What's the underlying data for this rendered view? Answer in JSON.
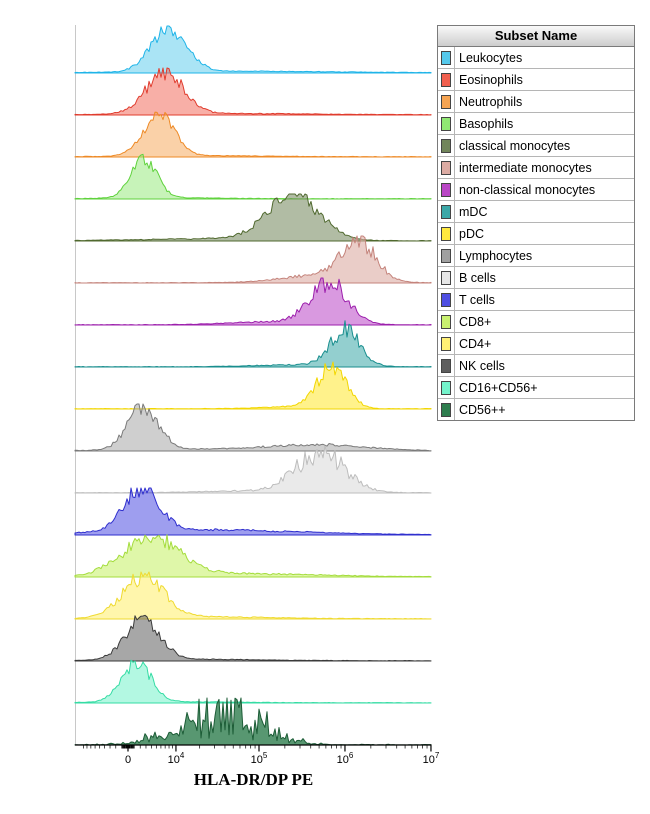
{
  "legend": {
    "title": "Subset Name"
  },
  "chart_data": {
    "type": "histogram",
    "variant": "stacked-ridgeline-overlay",
    "title": "",
    "xlabel": "HLA-DR/DP PE",
    "ylabel": "",
    "x_axis": {
      "scale": "biexponential",
      "range_max": 10000000,
      "ticks": [
        {
          "value": 0,
          "label": "0"
        },
        {
          "value": 10000,
          "base": "10",
          "exp": "4"
        },
        {
          "value": 100000,
          "base": "10",
          "exp": "5"
        },
        {
          "value": 1000000,
          "base": "10",
          "exp": "6"
        },
        {
          "value": 10000000,
          "base": "10",
          "exp": "7"
        }
      ]
    },
    "subsets": [
      {
        "name": "Leukocytes",
        "color": "#55C9EC",
        "stroke": "#1FB4E8",
        "fill_opacity": 0.5,
        "noise": 0.18,
        "spiky": false,
        "peaks": [
          {
            "value": 8000,
            "sigma_decades": 0.21,
            "rel_height": 42
          },
          {
            "value": 60000,
            "sigma_decades": 1.1,
            "rel_height": 1.5
          }
        ]
      },
      {
        "name": "Eosinophils",
        "color": "#F2604F",
        "stroke": "#E03C2E",
        "fill_opacity": 0.5,
        "noise": 0.2,
        "spiky": false,
        "peaks": [
          {
            "value": 7000,
            "sigma_decades": 0.22,
            "rel_height": 41
          },
          {
            "value": 40000,
            "sigma_decades": 1.0,
            "rel_height": 1.2
          }
        ]
      },
      {
        "name": "Neutrophils",
        "color": "#F6A452",
        "stroke": "#EE8A26",
        "fill_opacity": 0.5,
        "noise": 0.18,
        "spiky": false,
        "peaks": [
          {
            "value": 5500,
            "sigma_decades": 0.18,
            "rel_height": 41
          },
          {
            "value": 20000,
            "sigma_decades": 0.8,
            "rel_height": 1
          }
        ]
      },
      {
        "name": "Basophils",
        "color": "#90E873",
        "stroke": "#5FD23C",
        "fill_opacity": 0.5,
        "noise": 0.18,
        "spiky": false,
        "peaks": [
          {
            "value": 2600,
            "sigma_decades": 0.15,
            "rel_height": 39
          },
          {
            "value": 8000,
            "sigma_decades": 0.6,
            "rel_height": 1
          }
        ]
      },
      {
        "name": "classical monocytes",
        "color": "#71855A",
        "stroke": "#50692F",
        "fill_opacity": 0.55,
        "noise": 0.2,
        "spiky": false,
        "peaks": [
          {
            "value": 250000,
            "sigma_decades": 0.3,
            "rel_height": 45
          },
          {
            "value": 30000,
            "sigma_decades": 0.8,
            "rel_height": 2
          }
        ]
      },
      {
        "name": "intermediate monocytes",
        "color": "#DCABA3",
        "stroke": "#C4837B",
        "fill_opacity": 0.6,
        "noise": 0.25,
        "spiky": false,
        "peaks": [
          {
            "value": 1400000,
            "sigma_decades": 0.2,
            "rel_height": 41
          },
          {
            "value": 500000,
            "sigma_decades": 0.45,
            "rel_height": 7
          }
        ]
      },
      {
        "name": "non-classical monocytes",
        "color": "#BA46C6",
        "stroke": "#9C1FAC",
        "fill_opacity": 0.55,
        "noise": 0.25,
        "spiky": false,
        "peaks": [
          {
            "value": 650000,
            "sigma_decades": 0.22,
            "rel_height": 41
          },
          {
            "value": 150000,
            "sigma_decades": 0.5,
            "rel_height": 3
          }
        ]
      },
      {
        "name": "mDC",
        "color": "#3BA8A8",
        "stroke": "#188E8E",
        "fill_opacity": 0.55,
        "noise": 0.25,
        "spiky": false,
        "peaks": [
          {
            "value": 1000000,
            "sigma_decades": 0.17,
            "rel_height": 36
          },
          {
            "value": 300000,
            "sigma_decades": 0.5,
            "rel_height": 2
          }
        ]
      },
      {
        "name": "pDC",
        "color": "#FFE93E",
        "stroke": "#F2D600",
        "fill_opacity": 0.6,
        "noise": 0.22,
        "spiky": false,
        "peaks": [
          {
            "value": 700000,
            "sigma_decades": 0.17,
            "rel_height": 40
          },
          {
            "value": 250000,
            "sigma_decades": 0.4,
            "rel_height": 2
          }
        ]
      },
      {
        "name": "Lymphocytes",
        "color": "#A0A0A0",
        "stroke": "#7A7A7A",
        "fill_opacity": 0.5,
        "noise": 0.2,
        "spiky": false,
        "peaks": [
          {
            "value": 2500,
            "sigma_decades": 0.18,
            "rel_height": 43
          },
          {
            "value": 500000,
            "sigma_decades": 0.55,
            "rel_height": 5.5
          },
          {
            "value": 30000,
            "sigma_decades": 0.9,
            "rel_height": 1.5
          }
        ]
      },
      {
        "name": "B cells",
        "color": "#E6E6E6",
        "stroke": "#BDBDBD",
        "fill_opacity": 0.85,
        "noise": 0.3,
        "spiky": false,
        "peaks": [
          {
            "value": 520000,
            "sigma_decades": 0.28,
            "rel_height": 39
          },
          {
            "value": 100000,
            "sigma_decades": 0.6,
            "rel_height": 2
          }
        ]
      },
      {
        "name": "T cells",
        "color": "#4F4FE2",
        "stroke": "#2F2FCE",
        "fill_opacity": 0.55,
        "noise": 0.2,
        "spiky": false,
        "peaks": [
          {
            "value": 2300,
            "sigma_decades": 0.2,
            "rel_height": 43
          },
          {
            "value": 20000,
            "sigma_decades": 1.1,
            "rel_height": 5
          }
        ]
      },
      {
        "name": "CD8+",
        "color": "#C9F170",
        "stroke": "#A4DC3C",
        "fill_opacity": 0.6,
        "noise": 0.25,
        "spiky": false,
        "peaks": [
          {
            "value": 4000,
            "sigma_decades": 0.33,
            "rel_height": 39
          },
          {
            "value": 60000,
            "sigma_decades": 0.9,
            "rel_height": 3
          }
        ]
      },
      {
        "name": "CD4+",
        "color": "#FFF075",
        "stroke": "#EFDA30",
        "fill_opacity": 0.6,
        "noise": 0.22,
        "spiky": false,
        "peaks": [
          {
            "value": 2500,
            "sigma_decades": 0.24,
            "rel_height": 41
          },
          {
            "value": 20000,
            "sigma_decades": 0.8,
            "rel_height": 2
          }
        ]
      },
      {
        "name": "NK cells",
        "color": "#5E5E5E",
        "stroke": "#3A3A3A",
        "fill_opacity": 0.55,
        "noise": 0.2,
        "spiky": false,
        "peaks": [
          {
            "value": 2400,
            "sigma_decades": 0.2,
            "rel_height": 41
          },
          {
            "value": 15000,
            "sigma_decades": 0.8,
            "rel_height": 1.5
          }
        ]
      },
      {
        "name": "CD16+CD56+",
        "color": "#74F3CB",
        "stroke": "#35DCA4",
        "fill_opacity": 0.55,
        "noise": 0.2,
        "spiky": false,
        "peaks": [
          {
            "value": 1300,
            "sigma_decades": 0.17,
            "rel_height": 40
          },
          {
            "value": 8000,
            "sigma_decades": 0.7,
            "rel_height": 1
          }
        ]
      },
      {
        "name": "CD56++",
        "color": "#2E7D4E",
        "stroke": "#1C5C36",
        "fill_opacity": 0.8,
        "noise": 0.5,
        "spiky": true,
        "peaks": [
          {
            "value": 30000,
            "sigma_decades": 0.42,
            "rel_height": 30
          },
          {
            "value": 150000,
            "sigma_decades": 0.2,
            "rel_height": 6
          }
        ]
      }
    ]
  }
}
